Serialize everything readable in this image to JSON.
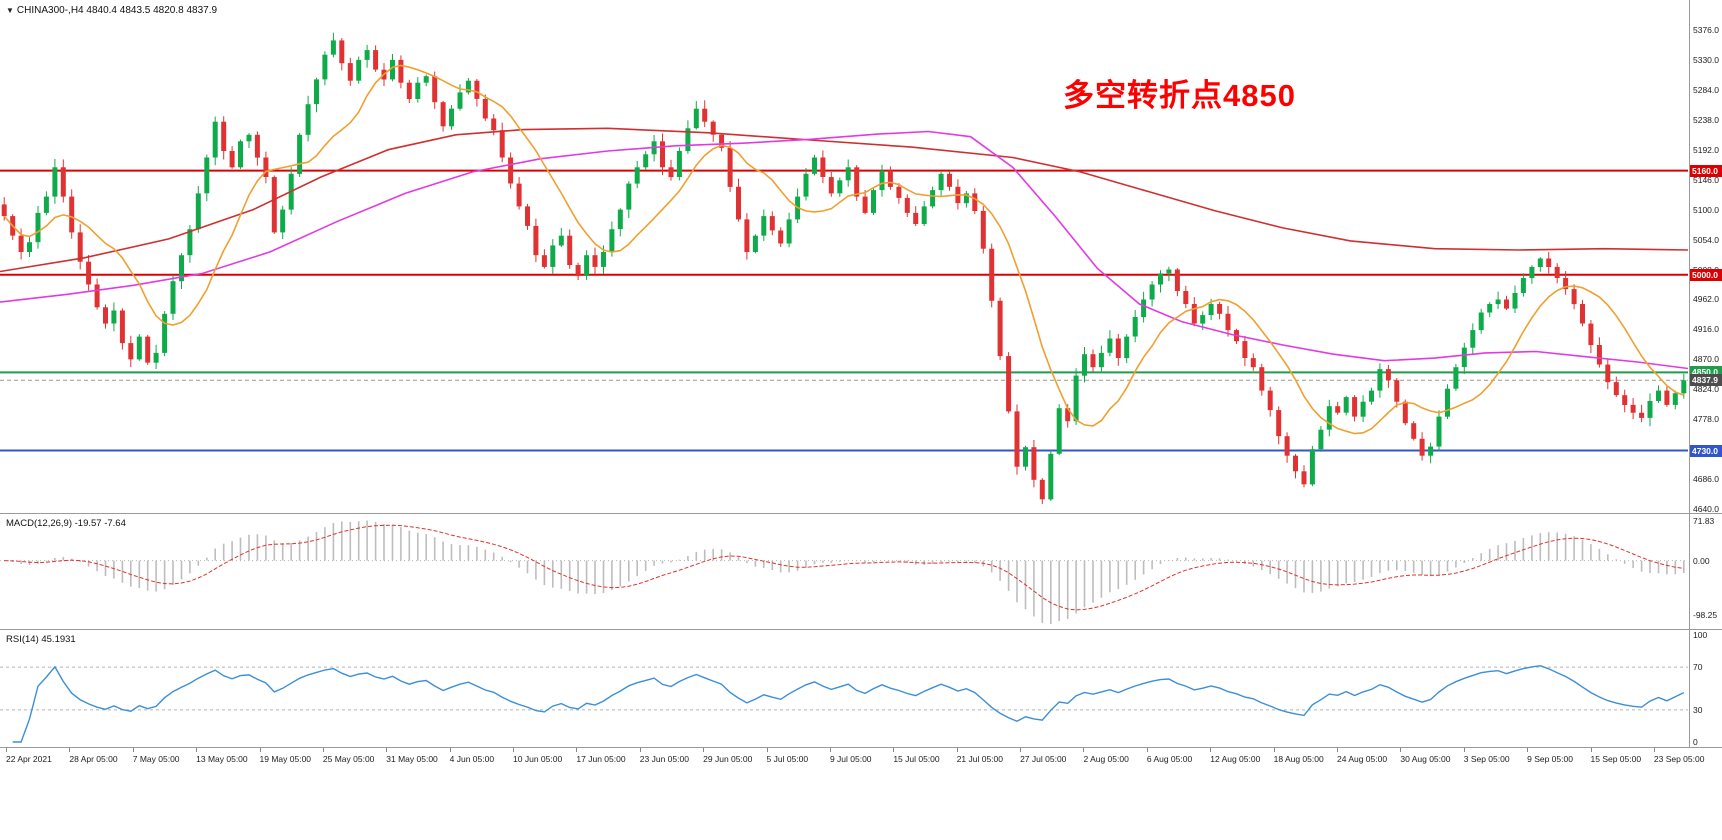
{
  "header": {
    "dropdown_icon": "▼",
    "title": "CHINA300-,H4  4840.4 4843.5 4820.8 4837.9"
  },
  "annotation": {
    "text": "多空转折点4850",
    "color": "#ff0000"
  },
  "colors": {
    "bull": "#0fab4b",
    "bear": "#e03232",
    "current_line": "#999999",
    "current_tag_bg": "#4d4d4d"
  },
  "chart_data": [
    {
      "type": "candlestick",
      "symbol": "CHINA300-",
      "timeframe": "H4",
      "ohlc_summary": {
        "open": 4840.4,
        "high": 4843.5,
        "low": 4820.8,
        "close": 4837.9
      },
      "ylim": [
        4634,
        5422
      ],
      "y_ticks": [
        "5376.0",
        "5330.0",
        "5284.0",
        "5238.0",
        "5192.0",
        "5146.0",
        "5100.0",
        "5054.0",
        "5008.0",
        "4962.0",
        "4916.0",
        "4870.0",
        "4824.0",
        "4778.0",
        "4732.0",
        "4686.0",
        "4640.0"
      ],
      "closes": [
        5090,
        5060,
        5035,
        5050,
        5095,
        5120,
        5165,
        5120,
        5065,
        5020,
        4985,
        4950,
        4925,
        4945,
        4895,
        4870,
        4905,
        4865,
        4880,
        4940,
        4990,
        5030,
        5070,
        5125,
        5180,
        5235,
        5190,
        5165,
        5205,
        5215,
        5180,
        5150,
        5065,
        5100,
        5155,
        5215,
        5262,
        5300,
        5338,
        5360,
        5325,
        5298,
        5330,
        5345,
        5315,
        5300,
        5330,
        5295,
        5270,
        5295,
        5305,
        5265,
        5228,
        5255,
        5280,
        5298,
        5270,
        5240,
        5222,
        5180,
        5140,
        5105,
        5075,
        5030,
        5012,
        5045,
        5060,
        5015,
        4998,
        5030,
        5012,
        5035,
        5070,
        5100,
        5140,
        5165,
        5185,
        5205,
        5165,
        5150,
        5190,
        5225,
        5255,
        5235,
        5215,
        5195,
        5135,
        5085,
        5035,
        5060,
        5090,
        5068,
        5048,
        5085,
        5120,
        5155,
        5180,
        5150,
        5125,
        5145,
        5165,
        5120,
        5095,
        5130,
        5160,
        5135,
        5118,
        5095,
        5078,
        5105,
        5130,
        5155,
        5135,
        5110,
        5125,
        5098,
        5040,
        4960,
        4875,
        4790,
        4705,
        4735,
        4685,
        4655,
        4725,
        4795,
        4775,
        4845,
        4878,
        4858,
        4880,
        4902,
        4872,
        4905,
        4935,
        4962,
        4985,
        5002,
        5008,
        4975,
        4955,
        4925,
        4938,
        4955,
        4940,
        4915,
        4898,
        4872,
        4858,
        4822,
        4792,
        4752,
        4722,
        4698,
        4678,
        4732,
        4762,
        4798,
        4788,
        4812,
        4782,
        4805,
        4822,
        4855,
        4838,
        4805,
        4772,
        4748,
        4722,
        4736,
        4782,
        4825,
        4858,
        4888,
        4915,
        4942,
        4955,
        4962,
        4948,
        4972,
        4995,
        5012,
        5025,
        5012,
        4995,
        4978,
        4955,
        4925,
        4892,
        4862,
        4835,
        4815,
        4800,
        4788,
        4780,
        4806,
        4822,
        4800,
        4818,
        4837.9
      ],
      "levels": [
        {
          "price": 5160.0,
          "label": "5160.0",
          "color": "#dd0000"
        },
        {
          "price": 5000.0,
          "label": "5000.0",
          "color": "#dd0000"
        },
        {
          "price": 4850.0,
          "label": "4850.0",
          "color": "#1e9e4a"
        },
        {
          "price": 4730.0,
          "label": "4730.0",
          "color": "#3355cc"
        }
      ],
      "current_price": {
        "price": 4837.9,
        "label": "4837.9"
      },
      "ma_fast": {
        "period": 11,
        "color": "#efa030"
      },
      "ma_mid": {
        "color": "#e23ae2",
        "points": [
          [
            0,
            4958
          ],
          [
            0.04,
            4970
          ],
          [
            0.08,
            4984
          ],
          [
            0.12,
            5002
          ],
          [
            0.16,
            5035
          ],
          [
            0.2,
            5082
          ],
          [
            0.24,
            5125
          ],
          [
            0.28,
            5158
          ],
          [
            0.32,
            5178
          ],
          [
            0.36,
            5190
          ],
          [
            0.4,
            5198
          ],
          [
            0.44,
            5202
          ],
          [
            0.48,
            5208
          ],
          [
            0.52,
            5216
          ],
          [
            0.55,
            5220
          ],
          [
            0.575,
            5212
          ],
          [
            0.6,
            5165
          ],
          [
            0.625,
            5090
          ],
          [
            0.65,
            5010
          ],
          [
            0.675,
            4955
          ],
          [
            0.7,
            4928
          ],
          [
            0.73,
            4908
          ],
          [
            0.76,
            4892
          ],
          [
            0.79,
            4878
          ],
          [
            0.82,
            4868
          ],
          [
            0.85,
            4872
          ],
          [
            0.88,
            4880
          ],
          [
            0.91,
            4882
          ],
          [
            0.94,
            4874
          ],
          [
            0.97,
            4866
          ],
          [
            1,
            4856
          ]
        ]
      },
      "ma_slow": {
        "color": "#d02f2f",
        "points": [
          [
            0,
            5005
          ],
          [
            0.05,
            5026
          ],
          [
            0.1,
            5055
          ],
          [
            0.15,
            5100
          ],
          [
            0.19,
            5150
          ],
          [
            0.23,
            5192
          ],
          [
            0.27,
            5215
          ],
          [
            0.31,
            5223
          ],
          [
            0.36,
            5225
          ],
          [
            0.42,
            5218
          ],
          [
            0.48,
            5207
          ],
          [
            0.54,
            5196
          ],
          [
            0.6,
            5180
          ],
          [
            0.64,
            5158
          ],
          [
            0.68,
            5128
          ],
          [
            0.72,
            5098
          ],
          [
            0.76,
            5072
          ],
          [
            0.8,
            5052
          ],
          [
            0.85,
            5040
          ],
          [
            0.9,
            5038
          ],
          [
            0.95,
            5040
          ],
          [
            1,
            5038
          ]
        ]
      }
    },
    {
      "type": "macd",
      "label": "MACD(12,26,9) -19.57 -7.64",
      "params": [
        12,
        26,
        9
      ],
      "values": [
        -19.57,
        -7.64
      ],
      "y_ticks": [
        "71.83",
        "0.00",
        "-98.25"
      ],
      "bar_color": "#bdbdbd",
      "signal_color": "#e03232"
    },
    {
      "type": "rsi",
      "label": "RSI(14) 45.1931",
      "period": 14,
      "value": 45.1931,
      "y_ticks": [
        "100",
        "70",
        "30",
        "0"
      ],
      "levels": [
        70,
        30
      ],
      "line_color": "#3c8fd6"
    }
  ],
  "x_axis": {
    "labels": [
      "22 Apr 2021",
      "28 Apr 05:00",
      "7 May 05:00",
      "13 May 05:00",
      "19 May 05:00",
      "25 May 05:00",
      "31 May 05:00",
      "4 Jun 05:00",
      "10 Jun 05:00",
      "17 Jun 05:00",
      "23 Jun 05:00",
      "29 Jun 05:00",
      "5 Jul 05:00",
      "9 Jul 05:00",
      "15 Jul 05:00",
      "21 Jul 05:00",
      "27 Jul 05:00",
      "2 Aug 05:00",
      "6 Aug 05:00",
      "12 Aug 05:00",
      "18 Aug 05:00",
      "24 Aug 05:00",
      "30 Aug 05:00",
      "3 Sep 05:00",
      "9 Sep 05:00",
      "15 Sep 05:00",
      "23 Sep 05:00"
    ]
  }
}
